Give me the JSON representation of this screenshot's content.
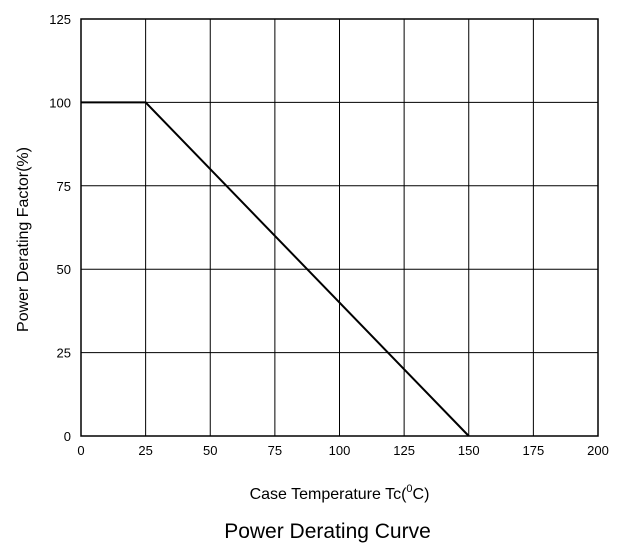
{
  "chart_data": {
    "type": "line",
    "title": "Power Derating Curve",
    "xlabel": {
      "main": "Case Temperature Tc(",
      "sup": "0",
      "tail": "C)"
    },
    "ylabel": "Power Derating Factor(%)",
    "xlim": [
      0,
      200
    ],
    "ylim": [
      0,
      125
    ],
    "x_ticks": [
      0,
      25,
      50,
      75,
      100,
      125,
      150,
      175,
      200
    ],
    "y_ticks": [
      0,
      25,
      50,
      75,
      100,
      125
    ],
    "grid": true,
    "series": [
      {
        "x": [
          0,
          25,
          150
        ],
        "y": [
          100,
          100,
          0
        ],
        "color": "#000000"
      }
    ]
  }
}
